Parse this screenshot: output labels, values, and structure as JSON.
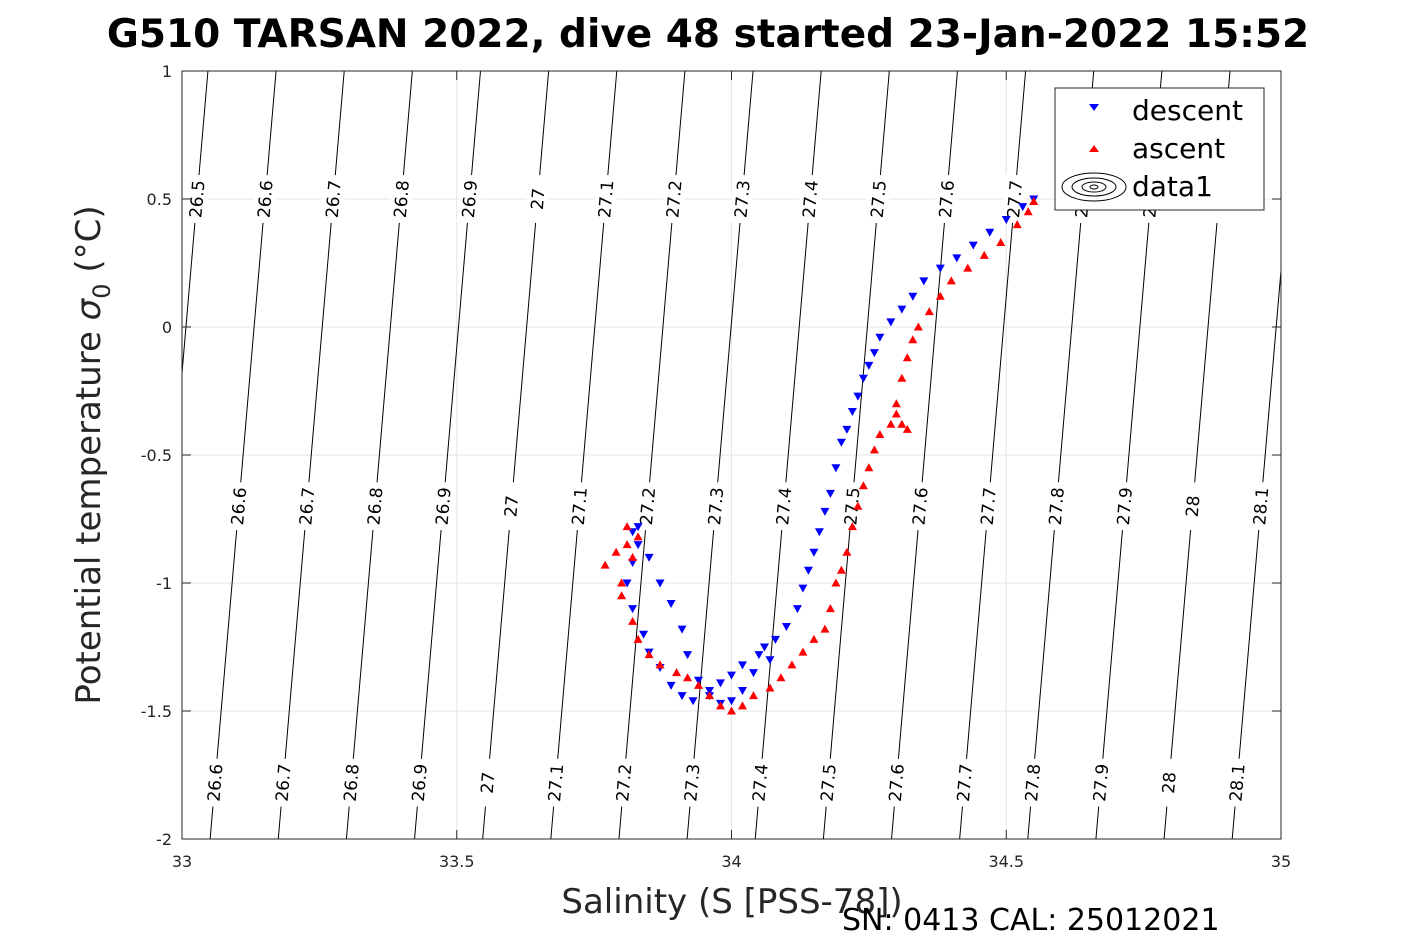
{
  "chart_data": {
    "type": "scatter",
    "title": "G510 TARSAN 2022, dive 48 started 23-Jan-2022 15:52",
    "xlabel": "Salinity (S [PSS-78])",
    "ylabel_text": "Potential temperature ",
    "ylabel_sigma": "σ",
    "ylabel_sub": "0",
    "ylabel_unit": " (°C)",
    "footer": "SN: 0413  CAL: 25012021",
    "xlim": [
      33,
      35
    ],
    "ylim": [
      -2,
      1
    ],
    "xticks": [
      "33",
      "33.5",
      "34",
      "34.5",
      "35"
    ],
    "yticks": [
      "1",
      "0.5",
      "0",
      "-0.5",
      "-1",
      "-1.5",
      "-2"
    ],
    "grid": true,
    "legend_position": "top-right",
    "legend": [
      "descent",
      "ascent",
      "data1"
    ],
    "contour_levels": [
      "26.5",
      "26.6",
      "26.7",
      "26.8",
      "26.9",
      "27",
      "27.1",
      "27.2",
      "27.3",
      "27.4",
      "27.5",
      "27.6",
      "27.7",
      "27.8",
      "27.9",
      "28",
      "28.1"
    ],
    "colors": {
      "descent": "#0000ff",
      "ascent": "#ff0000",
      "grid": "#e6e6e6",
      "contour": "#000000"
    },
    "series": [
      {
        "name": "descent",
        "marker": "triangle-down",
        "points": [
          [
            34.55,
            0.5
          ],
          [
            34.53,
            0.47
          ],
          [
            34.5,
            0.42
          ],
          [
            34.47,
            0.37
          ],
          [
            34.44,
            0.32
          ],
          [
            34.41,
            0.27
          ],
          [
            34.38,
            0.23
          ],
          [
            34.35,
            0.18
          ],
          [
            34.33,
            0.12
          ],
          [
            34.31,
            0.07
          ],
          [
            34.29,
            0.02
          ],
          [
            34.27,
            -0.04
          ],
          [
            34.26,
            -0.1
          ],
          [
            34.25,
            -0.15
          ],
          [
            34.24,
            -0.2
          ],
          [
            34.23,
            -0.27
          ],
          [
            34.22,
            -0.33
          ],
          [
            34.21,
            -0.4
          ],
          [
            34.2,
            -0.45
          ],
          [
            34.19,
            -0.55
          ],
          [
            34.18,
            -0.65
          ],
          [
            34.17,
            -0.72
          ],
          [
            34.16,
            -0.8
          ],
          [
            34.15,
            -0.88
          ],
          [
            34.14,
            -0.95
          ],
          [
            34.13,
            -1.02
          ],
          [
            34.12,
            -1.1
          ],
          [
            34.1,
            -1.17
          ],
          [
            34.08,
            -1.22
          ],
          [
            34.05,
            -1.28
          ],
          [
            34.02,
            -1.32
          ],
          [
            34.0,
            -1.36
          ],
          [
            33.98,
            -1.39
          ],
          [
            33.96,
            -1.42
          ],
          [
            33.93,
            -1.46
          ],
          [
            33.91,
            -1.44
          ],
          [
            33.89,
            -1.4
          ],
          [
            33.87,
            -1.33
          ],
          [
            33.85,
            -1.27
          ],
          [
            33.84,
            -1.2
          ],
          [
            33.82,
            -1.1
          ],
          [
            33.81,
            -1.0
          ],
          [
            33.82,
            -0.92
          ],
          [
            33.83,
            -0.85
          ],
          [
            33.82,
            -0.8
          ],
          [
            33.83,
            -0.78
          ],
          [
            33.85,
            -0.9
          ],
          [
            33.87,
            -1.0
          ],
          [
            33.89,
            -1.08
          ],
          [
            33.91,
            -1.18
          ],
          [
            33.92,
            -1.28
          ],
          [
            33.94,
            -1.38
          ],
          [
            33.96,
            -1.44
          ],
          [
            33.98,
            -1.47
          ],
          [
            34.0,
            -1.46
          ],
          [
            34.02,
            -1.42
          ],
          [
            34.04,
            -1.35
          ],
          [
            34.06,
            -1.25
          ],
          [
            34.07,
            -1.3
          ]
        ]
      },
      {
        "name": "ascent",
        "marker": "triangle-up",
        "points": [
          [
            33.77,
            -0.93
          ],
          [
            33.79,
            -0.88
          ],
          [
            33.81,
            -0.85
          ],
          [
            33.83,
            -0.82
          ],
          [
            33.81,
            -0.78
          ],
          [
            33.82,
            -0.9
          ],
          [
            33.8,
            -1.0
          ],
          [
            33.8,
            -1.05
          ],
          [
            33.82,
            -1.15
          ],
          [
            33.83,
            -1.22
          ],
          [
            33.85,
            -1.28
          ],
          [
            33.87,
            -1.32
          ],
          [
            33.9,
            -1.35
          ],
          [
            33.92,
            -1.37
          ],
          [
            33.94,
            -1.4
          ],
          [
            33.96,
            -1.44
          ],
          [
            33.98,
            -1.48
          ],
          [
            34.0,
            -1.5
          ],
          [
            34.02,
            -1.48
          ],
          [
            34.04,
            -1.44
          ],
          [
            34.07,
            -1.41
          ],
          [
            34.09,
            -1.37
          ],
          [
            34.11,
            -1.32
          ],
          [
            34.13,
            -1.27
          ],
          [
            34.15,
            -1.22
          ],
          [
            34.17,
            -1.18
          ],
          [
            34.18,
            -1.1
          ],
          [
            34.19,
            -1.0
          ],
          [
            34.2,
            -0.95
          ],
          [
            34.21,
            -0.88
          ],
          [
            34.22,
            -0.78
          ],
          [
            34.23,
            -0.7
          ],
          [
            34.24,
            -0.62
          ],
          [
            34.25,
            -0.55
          ],
          [
            34.26,
            -0.48
          ],
          [
            34.27,
            -0.42
          ],
          [
            34.29,
            -0.38
          ],
          [
            34.3,
            -0.34
          ],
          [
            34.31,
            -0.38
          ],
          [
            34.32,
            -0.4
          ],
          [
            34.3,
            -0.3
          ],
          [
            34.31,
            -0.2
          ],
          [
            34.32,
            -0.12
          ],
          [
            34.33,
            -0.05
          ],
          [
            34.34,
            0.0
          ],
          [
            34.36,
            0.06
          ],
          [
            34.38,
            0.12
          ],
          [
            34.4,
            0.18
          ],
          [
            34.43,
            0.23
          ],
          [
            34.46,
            0.28
          ],
          [
            34.49,
            0.33
          ],
          [
            34.52,
            0.4
          ],
          [
            34.54,
            0.45
          ],
          [
            34.55,
            0.49
          ]
        ]
      }
    ]
  }
}
